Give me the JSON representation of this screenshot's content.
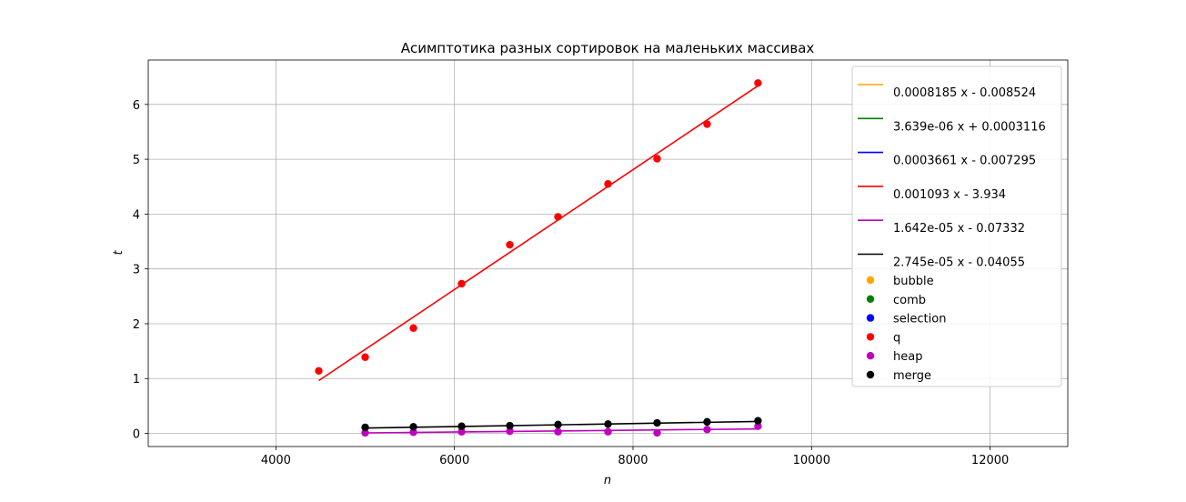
{
  "chart_data": {
    "type": "scatter",
    "title": "Асимптотика разных сортировок на маленьких массивах",
    "xlabel": "n",
    "ylabel": "t",
    "xlim": [
      2570,
      12870
    ],
    "ylim": [
      -0.24,
      6.81
    ],
    "xticks": [
      4000,
      6000,
      8000,
      10000,
      12000
    ],
    "yticks": [
      0,
      1,
      2,
      3,
      4,
      5,
      6
    ],
    "grid": true,
    "legend_position": "top-right",
    "fit_lines": [
      {
        "label": "0.0008185 x - 0.008524",
        "color": "#ffa500",
        "slope": 0.0008185,
        "intercept": -0.008524,
        "x": [
          4480,
          9400
        ],
        "visible": false
      },
      {
        "label": "3.639e-06 x + 0.0003116",
        "color": "#008000",
        "slope": 3.639e-06,
        "intercept": 0.0003116,
        "x": [
          4480,
          9400
        ],
        "visible": false
      },
      {
        "label": "0.0003661 x - 0.007295",
        "color": "#0000ff",
        "slope": 0.0003661,
        "intercept": -0.007295,
        "x": [
          4480,
          9400
        ],
        "visible": false
      },
      {
        "label": "0.001093 x - 3.934",
        "color": "#ff0000",
        "slope": 0.001093,
        "intercept": -3.934,
        "x": [
          4480,
          9400
        ],
        "visible": true
      },
      {
        "label": "1.642e-05 x - 0.07332",
        "color": "#bf00bf",
        "slope": 1.642e-05,
        "intercept": -0.07332,
        "x": [
          5000,
          9400
        ],
        "visible": true
      },
      {
        "label": "2.745e-05 x - 0.04055",
        "color": "#000000",
        "slope": 2.745e-05,
        "intercept": -0.04055,
        "x": [
          5000,
          9400
        ],
        "visible": true
      }
    ],
    "series": [
      {
        "name": "bubble",
        "color": "#ffa500",
        "x": [],
        "y": []
      },
      {
        "name": "comb",
        "color": "#008000",
        "x": [],
        "y": []
      },
      {
        "name": "selection",
        "color": "#0000ff",
        "x": [],
        "y": []
      },
      {
        "name": "q",
        "color": "#ff0000",
        "x": [
          4480,
          5000,
          5540,
          6080,
          6620,
          7160,
          7720,
          8270,
          8830,
          9400
        ],
        "y": [
          1.14,
          1.39,
          1.92,
          2.73,
          3.44,
          3.95,
          4.55,
          5.01,
          5.64,
          6.39
        ]
      },
      {
        "name": "heap",
        "color": "#bf00bf",
        "x": [
          5000,
          5540,
          6080,
          6620,
          7160,
          7720,
          8270,
          8830,
          9400
        ],
        "y": [
          0.01,
          0.02,
          0.03,
          0.04,
          0.03,
          0.03,
          0.01,
          0.07,
          0.13
        ]
      },
      {
        "name": "merge",
        "color": "#000000",
        "x": [
          5000,
          5540,
          6080,
          6620,
          7160,
          7720,
          8270,
          8830,
          9400
        ],
        "y": [
          0.11,
          0.12,
          0.13,
          0.14,
          0.16,
          0.17,
          0.19,
          0.21,
          0.23
        ]
      }
    ]
  }
}
